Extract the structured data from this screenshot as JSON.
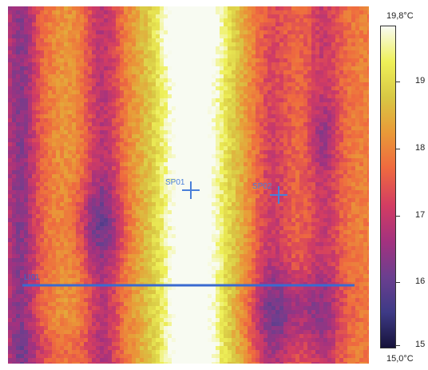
{
  "thermal_image": {
    "texture": "noisy-infrared-false-color",
    "palette": [
      "#16123a",
      "#3e3a86",
      "#6b3f8f",
      "#a3327f",
      "#d23c63",
      "#ef6a3f",
      "#e99a38",
      "#d8c844",
      "#eef058",
      "#f8fbf2"
    ]
  },
  "spots": [
    {
      "label": "SP01",
      "color": "#4a7fd9"
    },
    {
      "label": "SP02",
      "color": "#4a7fd9"
    }
  ],
  "line": {
    "label": "LI01",
    "color": "#3a6ad0"
  },
  "scale": {
    "max_label": "19,8°C",
    "min_label": "15,0°C",
    "ticks": [
      "19",
      "18",
      "17",
      "16",
      "15"
    ],
    "max_value": 19.8,
    "min_value": 15.0
  }
}
